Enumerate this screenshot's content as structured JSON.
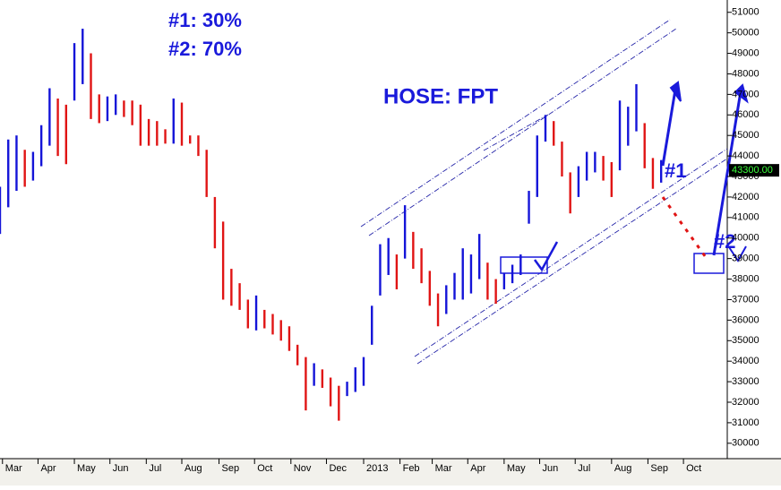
{
  "chart_data": {
    "type": "ohlc",
    "title": "HOSE: FPT",
    "annotations": [
      "#1:  30%",
      "#2:  70%",
      "#1",
      "#2"
    ],
    "last_price": {
      "value": 43300,
      "label": "43300.00"
    },
    "up_color": "#1414d8",
    "down_color": "#e01414",
    "xlim": [
      0,
      88
    ],
    "xticks": [
      {
        "value": 0.3,
        "label": "Mar"
      },
      {
        "value": 4.6,
        "label": "Apr"
      },
      {
        "value": 9,
        "label": "May"
      },
      {
        "value": 13.3,
        "label": "Jun"
      },
      {
        "value": 17.7,
        "label": "Jul"
      },
      {
        "value": 22,
        "label": "Aug"
      },
      {
        "value": 26.5,
        "label": "Sep"
      },
      {
        "value": 30.8,
        "label": "Oct"
      },
      {
        "value": 35.2,
        "label": "Nov"
      },
      {
        "value": 39.5,
        "label": "Dec"
      },
      {
        "value": 44,
        "label": "2013"
      },
      {
        "value": 48.4,
        "label": "Feb"
      },
      {
        "value": 52.3,
        "label": "Mar"
      },
      {
        "value": 56.6,
        "label": "Apr"
      },
      {
        "value": 61,
        "label": "May"
      },
      {
        "value": 65.3,
        "label": "Jun"
      },
      {
        "value": 69.6,
        "label": "Jul"
      },
      {
        "value": 74,
        "label": "Aug"
      },
      {
        "value": 78.4,
        "label": "Sep"
      },
      {
        "value": 82.7,
        "label": "Oct"
      }
    ],
    "ylim": [
      29250,
      51600
    ],
    "yticks": [
      30000,
      31000,
      32000,
      33000,
      34000,
      35000,
      36000,
      37000,
      38000,
      39000,
      40000,
      41000,
      42000,
      43000,
      44000,
      45000,
      46000,
      47000,
      48000,
      49000,
      50000,
      51000
    ],
    "x": [
      0,
      1,
      2,
      3,
      4,
      5,
      6,
      7,
      8,
      9,
      10,
      11,
      12,
      13,
      14,
      15,
      16,
      17,
      18,
      19,
      20,
      21,
      22,
      23,
      24,
      25,
      26,
      27,
      28,
      29,
      30,
      31,
      32,
      33,
      34,
      35,
      36,
      37,
      38,
      39,
      40,
      41,
      42,
      43,
      44,
      45,
      46,
      47,
      48,
      49,
      50,
      51,
      52,
      53,
      54,
      55,
      56,
      57,
      58,
      59,
      60,
      61,
      62,
      63,
      64,
      65,
      66,
      67,
      68,
      69,
      70,
      71,
      72,
      73,
      74,
      75,
      76,
      77,
      78,
      79,
      80
    ],
    "high": [
      42500,
      44800,
      45000,
      44300,
      44200,
      45500,
      47300,
      46800,
      46500,
      49500,
      50200,
      49000,
      47000,
      46900,
      47000,
      46700,
      46700,
      46500,
      45800,
      45700,
      45300,
      46800,
      46600,
      45000,
      45000,
      44300,
      42000,
      40800,
      38500,
      37800,
      37000,
      37200,
      36500,
      36300,
      36000,
      35700,
      34800,
      34200,
      33900,
      33600,
      33200,
      32800,
      33000,
      33700,
      34200,
      36700,
      39700,
      40000,
      39200,
      41600,
      40300,
      39500,
      38400,
      37300,
      37700,
      38300,
      39500,
      39200,
      40200,
      38800,
      38000,
      38300,
      38700,
      39200,
      42300,
      45000,
      46000,
      45700,
      44700,
      43200,
      43500,
      44200,
      44200,
      44000,
      43700,
      46700,
      46400,
      47500,
      45600,
      43900,
      43800
    ],
    "low": [
      40200,
      41500,
      42300,
      42500,
      42800,
      43500,
      44500,
      44000,
      43600,
      46700,
      47500,
      45800,
      45600,
      45700,
      46000,
      45900,
      45500,
      44500,
      44500,
      44500,
      44600,
      44600,
      44500,
      44600,
      44000,
      42000,
      39500,
      37000,
      36700,
      36500,
      35600,
      35500,
      35600,
      35300,
      35000,
      34500,
      33800,
      31600,
      32800,
      32700,
      31800,
      31100,
      32300,
      32500,
      32800,
      34800,
      37200,
      38200,
      37500,
      39000,
      38500,
      37800,
      36700,
      35700,
      36300,
      37000,
      37000,
      37300,
      38000,
      37000,
      36800,
      37500,
      37800,
      38200,
      40700,
      42000,
      44700,
      44500,
      43000,
      41200,
      42000,
      42800,
      43200,
      42800,
      42000,
      43300,
      44500,
      45200,
      43400,
      42400,
      42700
    ]
  }
}
